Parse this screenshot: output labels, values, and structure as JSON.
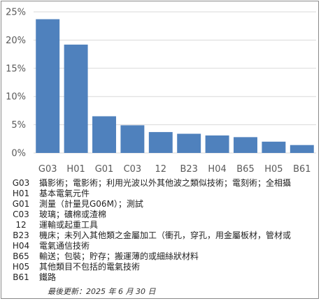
{
  "chart_data": {
    "type": "bar",
    "categories": [
      "G03",
      "H01",
      "G01",
      "C03",
      "12",
      "B23",
      "H04",
      "B65",
      "H05",
      "B61"
    ],
    "values": [
      23.7,
      19.2,
      6.5,
      4.9,
      3.7,
      3.4,
      3.1,
      2.8,
      2.0,
      1.4
    ],
    "ylim": [
      0,
      25
    ],
    "yticks": [
      "0%",
      "5%",
      "10%",
      "15%",
      "20%",
      "25%"
    ],
    "ytick_values": [
      0,
      5,
      10,
      15,
      20,
      25
    ],
    "grid": true,
    "bar_color": "#4F81BD",
    "grid_color": "#d9d9d9",
    "title": "",
    "xlabel": "",
    "ylabel": ""
  },
  "legend": [
    {
      "code": "G03",
      "desc": "攝影術；電影術；利用光波以外其他波之類似技術；電刻術；全相攝"
    },
    {
      "code": "H01",
      "desc": "基本電氣元件"
    },
    {
      "code": "G01",
      "desc": "測量（計量見G06M）；測試"
    },
    {
      "code": "C03",
      "desc": "玻璃；礦棉或渣棉"
    },
    {
      "code": "12",
      "desc": "運輸或起重工具"
    },
    {
      "code": "B23",
      "desc": "機床；未列入其他類之金屬加工（衝孔，穿孔，用金屬板材，管材或"
    },
    {
      "code": "H04",
      "desc": "電氣通信技術"
    },
    {
      "code": "B65",
      "desc": "輸送；包裝；貯存；搬運薄的或細絲狀材料"
    },
    {
      "code": "H05",
      "desc": "其他類目不包括的電氣技術"
    },
    {
      "code": "B61",
      "desc": "鐵路"
    }
  ],
  "footer": "最後更新：2025 年 6 月 30 日"
}
